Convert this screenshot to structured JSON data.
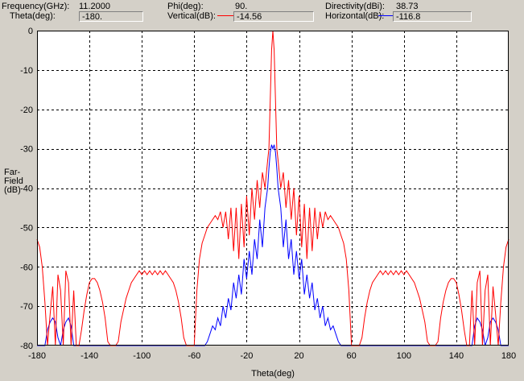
{
  "header": {
    "frequency_label": "Frequency(GHz):",
    "frequency_value": "11.2000",
    "theta_label": "Theta(deg):",
    "theta_value": "-180.",
    "phi_label": "Phi(deg):",
    "phi_value": "90.",
    "vertical_label": "Vertical(dB):",
    "vertical_value": "-14.56",
    "directivity_label": "Directivity(dBi):",
    "directivity_value": "38.73",
    "horizontal_label": "Horizontal(dB):",
    "horizontal_value": "-116.8"
  },
  "colors": {
    "vertical": "#ff0000",
    "horizontal": "#0000ff",
    "grid": "#000000",
    "plot_background": "#ffffff"
  },
  "chart_data": {
    "type": "line",
    "xlabel": "Theta(deg)",
    "ylabel": "Far-Field (dB)",
    "ylabel_lines": [
      "Far-",
      "Field",
      "(dB)"
    ],
    "xlim": [
      -180,
      180
    ],
    "ylim": [
      -80,
      0
    ],
    "xticks": [
      -180,
      -140,
      -100,
      -60,
      -20,
      20,
      60,
      100,
      140,
      180
    ],
    "yticks": [
      0,
      -10,
      -20,
      -30,
      -40,
      -50,
      -60,
      -70,
      -80
    ],
    "grid": true,
    "series": [
      {
        "name": "Vertical(dB)",
        "color": "#ff0000",
        "points": [
          [
            -180,
            -53
          ],
          [
            -178,
            -55
          ],
          [
            -176,
            -60
          ],
          [
            -174,
            -69
          ],
          [
            -172,
            -80
          ],
          [
            -170,
            -72
          ],
          [
            -168,
            -65
          ],
          [
            -166,
            -80
          ],
          [
            -164,
            -62
          ],
          [
            -162,
            -66
          ],
          [
            -160,
            -80
          ],
          [
            -158,
            -61
          ],
          [
            -156,
            -64
          ],
          [
            -154,
            -80
          ],
          [
            -152,
            -66
          ],
          [
            -150,
            -80
          ],
          [
            -148,
            -80
          ],
          [
            -146,
            -76
          ],
          [
            -144,
            -71
          ],
          [
            -142,
            -67
          ],
          [
            -140,
            -64
          ],
          [
            -138,
            -63
          ],
          [
            -136,
            -63
          ],
          [
            -134,
            -64
          ],
          [
            -132,
            -66
          ],
          [
            -130,
            -69
          ],
          [
            -128,
            -73
          ],
          [
            -126,
            -79
          ],
          [
            -124,
            -80
          ],
          [
            -122,
            -80
          ],
          [
            -120,
            -80
          ],
          [
            -118,
            -79
          ],
          [
            -116,
            -74
          ],
          [
            -114,
            -71
          ],
          [
            -112,
            -68
          ],
          [
            -110,
            -66
          ],
          [
            -108,
            -64
          ],
          [
            -106,
            -63
          ],
          [
            -104,
            -62
          ],
          [
            -102,
            -61
          ],
          [
            -100,
            -62
          ],
          [
            -98,
            -61
          ],
          [
            -96,
            -62
          ],
          [
            -94,
            -61
          ],
          [
            -92,
            -62
          ],
          [
            -90,
            -61
          ],
          [
            -88,
            -62
          ],
          [
            -86,
            -61
          ],
          [
            -84,
            -62
          ],
          [
            -82,
            -61
          ],
          [
            -80,
            -62
          ],
          [
            -78,
            -63
          ],
          [
            -76,
            -64
          ],
          [
            -74,
            -66
          ],
          [
            -72,
            -69
          ],
          [
            -70,
            -73
          ],
          [
            -68,
            -78
          ],
          [
            -66,
            -80
          ],
          [
            -64,
            -80
          ],
          [
            -62,
            -80
          ],
          [
            -60,
            -80
          ],
          [
            -58,
            -66
          ],
          [
            -56,
            -58
          ],
          [
            -54,
            -54
          ],
          [
            -52,
            -52
          ],
          [
            -50,
            -50
          ],
          [
            -48,
            -49
          ],
          [
            -46,
            -48
          ],
          [
            -44,
            -47
          ],
          [
            -42,
            -48
          ],
          [
            -40,
            -46
          ],
          [
            -38,
            -50
          ],
          [
            -36,
            -46
          ],
          [
            -34,
            -53
          ],
          [
            -32,
            -45
          ],
          [
            -30,
            -56
          ],
          [
            -28,
            -45
          ],
          [
            -26,
            -58
          ],
          [
            -24,
            -44
          ],
          [
            -22,
            -55
          ],
          [
            -20,
            -42
          ],
          [
            -18,
            -52
          ],
          [
            -16,
            -40
          ],
          [
            -14,
            -48
          ],
          [
            -12,
            -38
          ],
          [
            -10,
            -45
          ],
          [
            -8,
            -36
          ],
          [
            -6,
            -40
          ],
          [
            -4,
            -33
          ],
          [
            -3,
            -30
          ],
          [
            -2,
            -18
          ],
          [
            -1,
            -5
          ],
          [
            0,
            0
          ],
          [
            1,
            -5
          ],
          [
            2,
            -18
          ],
          [
            3,
            -30
          ],
          [
            4,
            -33
          ],
          [
            6,
            -40
          ],
          [
            8,
            -36
          ],
          [
            10,
            -45
          ],
          [
            12,
            -38
          ],
          [
            14,
            -48
          ],
          [
            16,
            -40
          ],
          [
            18,
            -52
          ],
          [
            20,
            -42
          ],
          [
            22,
            -55
          ],
          [
            24,
            -44
          ],
          [
            26,
            -58
          ],
          [
            28,
            -45
          ],
          [
            30,
            -56
          ],
          [
            32,
            -45
          ],
          [
            34,
            -53
          ],
          [
            36,
            -46
          ],
          [
            38,
            -50
          ],
          [
            40,
            -46
          ],
          [
            42,
            -48
          ],
          [
            44,
            -47
          ],
          [
            46,
            -48
          ],
          [
            48,
            -49
          ],
          [
            50,
            -50
          ],
          [
            52,
            -52
          ],
          [
            54,
            -54
          ],
          [
            56,
            -58
          ],
          [
            58,
            -66
          ],
          [
            60,
            -80
          ],
          [
            62,
            -80
          ],
          [
            64,
            -80
          ],
          [
            66,
            -80
          ],
          [
            68,
            -78
          ],
          [
            70,
            -73
          ],
          [
            72,
            -69
          ],
          [
            74,
            -66
          ],
          [
            76,
            -64
          ],
          [
            78,
            -63
          ],
          [
            80,
            -62
          ],
          [
            82,
            -61
          ],
          [
            84,
            -62
          ],
          [
            86,
            -61
          ],
          [
            88,
            -62
          ],
          [
            90,
            -61
          ],
          [
            92,
            -62
          ],
          [
            94,
            -61
          ],
          [
            96,
            -62
          ],
          [
            98,
            -61
          ],
          [
            100,
            -62
          ],
          [
            102,
            -61
          ],
          [
            104,
            -62
          ],
          [
            106,
            -63
          ],
          [
            108,
            -64
          ],
          [
            110,
            -66
          ],
          [
            112,
            -68
          ],
          [
            114,
            -71
          ],
          [
            116,
            -74
          ],
          [
            118,
            -79
          ],
          [
            120,
            -80
          ],
          [
            122,
            -80
          ],
          [
            124,
            -80
          ],
          [
            126,
            -79
          ],
          [
            128,
            -73
          ],
          [
            130,
            -69
          ],
          [
            132,
            -66
          ],
          [
            134,
            -64
          ],
          [
            136,
            -63
          ],
          [
            138,
            -63
          ],
          [
            140,
            -64
          ],
          [
            142,
            -67
          ],
          [
            144,
            -71
          ],
          [
            146,
            -76
          ],
          [
            148,
            -80
          ],
          [
            150,
            -80
          ],
          [
            152,
            -66
          ],
          [
            154,
            -80
          ],
          [
            156,
            -64
          ],
          [
            158,
            -61
          ],
          [
            160,
            -80
          ],
          [
            162,
            -66
          ],
          [
            164,
            -62
          ],
          [
            166,
            -80
          ],
          [
            168,
            -65
          ],
          [
            170,
            -72
          ],
          [
            172,
            -80
          ],
          [
            174,
            -69
          ],
          [
            176,
            -60
          ],
          [
            178,
            -55
          ],
          [
            180,
            -53
          ]
        ]
      },
      {
        "name": "Horizontal(dB)",
        "color": "#0000ff",
        "points": [
          [
            -180,
            -80
          ],
          [
            -178,
            -80
          ],
          [
            -176,
            -80
          ],
          [
            -174,
            -80
          ],
          [
            -172,
            -76
          ],
          [
            -170,
            -74
          ],
          [
            -168,
            -73
          ],
          [
            -166,
            -74
          ],
          [
            -164,
            -78
          ],
          [
            -162,
            -80
          ],
          [
            -160,
            -76
          ],
          [
            -158,
            -74
          ],
          [
            -156,
            -73
          ],
          [
            -154,
            -75
          ],
          [
            -152,
            -80
          ],
          [
            -150,
            -80
          ],
          [
            -148,
            -80
          ],
          [
            -60,
            -80
          ],
          [
            -56,
            -80
          ],
          [
            -52,
            -80
          ],
          [
            -50,
            -79
          ],
          [
            -48,
            -77
          ],
          [
            -46,
            -75
          ],
          [
            -44,
            -76
          ],
          [
            -42,
            -73
          ],
          [
            -40,
            -75
          ],
          [
            -38,
            -70
          ],
          [
            -36,
            -73
          ],
          [
            -34,
            -68
          ],
          [
            -32,
            -71
          ],
          [
            -30,
            -64
          ],
          [
            -28,
            -68
          ],
          [
            -26,
            -62
          ],
          [
            -24,
            -67
          ],
          [
            -22,
            -58
          ],
          [
            -20,
            -63
          ],
          [
            -18,
            -56
          ],
          [
            -16,
            -62
          ],
          [
            -14,
            -53
          ],
          [
            -12,
            -58
          ],
          [
            -10,
            -48
          ],
          [
            -8,
            -55
          ],
          [
            -6,
            -45
          ],
          [
            -4,
            -40
          ],
          [
            -3,
            -35
          ],
          [
            -2,
            -31
          ],
          [
            -1,
            -29
          ],
          [
            0,
            -30
          ],
          [
            1,
            -29
          ],
          [
            2,
            -31
          ],
          [
            3,
            -35
          ],
          [
            4,
            -40
          ],
          [
            6,
            -45
          ],
          [
            8,
            -55
          ],
          [
            10,
            -48
          ],
          [
            12,
            -58
          ],
          [
            14,
            -53
          ],
          [
            16,
            -62
          ],
          [
            18,
            -56
          ],
          [
            20,
            -63
          ],
          [
            22,
            -58
          ],
          [
            24,
            -67
          ],
          [
            26,
            -62
          ],
          [
            28,
            -68
          ],
          [
            30,
            -64
          ],
          [
            32,
            -71
          ],
          [
            34,
            -68
          ],
          [
            36,
            -73
          ],
          [
            38,
            -70
          ],
          [
            40,
            -75
          ],
          [
            42,
            -73
          ],
          [
            44,
            -76
          ],
          [
            46,
            -75
          ],
          [
            48,
            -77
          ],
          [
            50,
            -79
          ],
          [
            52,
            -80
          ],
          [
            56,
            -80
          ],
          [
            60,
            -80
          ],
          [
            148,
            -80
          ],
          [
            150,
            -80
          ],
          [
            152,
            -80
          ],
          [
            154,
            -75
          ],
          [
            156,
            -73
          ],
          [
            158,
            -74
          ],
          [
            160,
            -76
          ],
          [
            162,
            -80
          ],
          [
            164,
            -78
          ],
          [
            166,
            -74
          ],
          [
            168,
            -73
          ],
          [
            170,
            -74
          ],
          [
            172,
            -76
          ],
          [
            174,
            -80
          ],
          [
            176,
            -80
          ],
          [
            178,
            -80
          ],
          [
            180,
            -80
          ]
        ]
      }
    ]
  }
}
